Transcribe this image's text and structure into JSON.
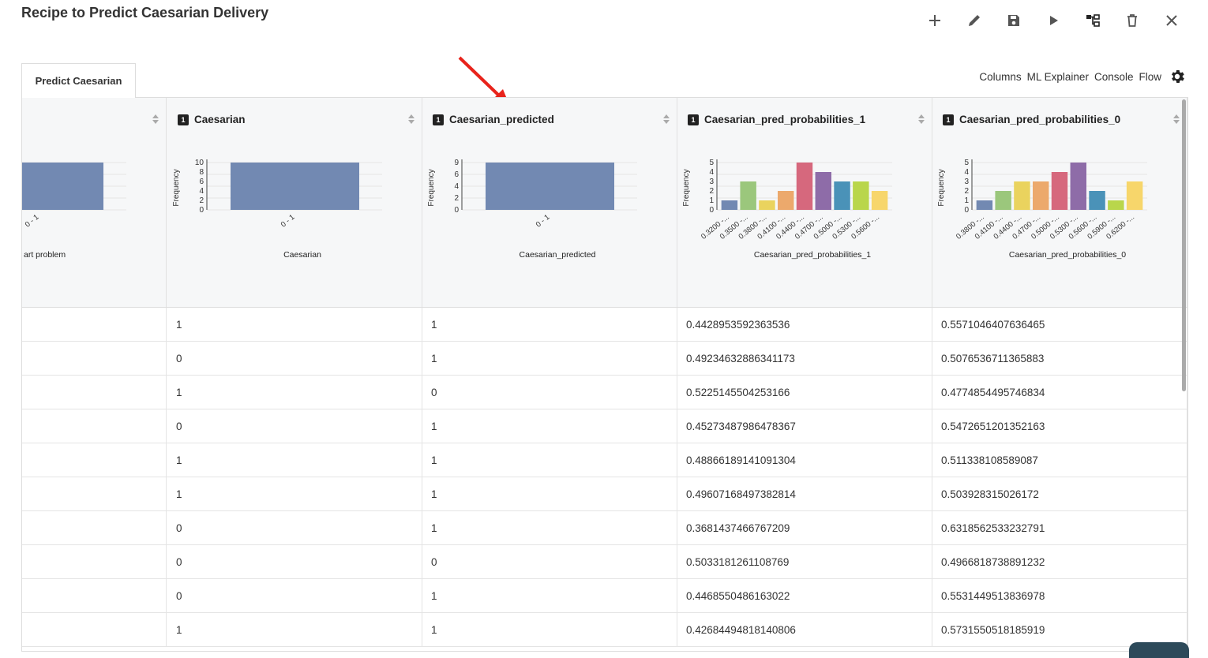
{
  "page": {
    "title": "Recipe to Predict Caesarian Delivery"
  },
  "toolbar": {
    "icons": [
      "plus-icon",
      "edit-icon",
      "save-icon",
      "run-icon",
      "flow-icon",
      "delete-icon",
      "close-icon"
    ]
  },
  "tabs": [
    {
      "label": "Predict Caesarian"
    }
  ],
  "right_nav": {
    "columns": "Columns",
    "ml_explainer": "ML Explainer",
    "console": "Console",
    "flow": "Flow"
  },
  "columns": [
    {
      "name": "",
      "axis_label": "art problem",
      "badge": "",
      "ylabel": "",
      "ticks": [],
      "bars": [
        1
      ],
      "xlabels": [
        "0 - 1"
      ]
    },
    {
      "name": "Caesarian",
      "axis_label": "Caesarian",
      "badge": "1",
      "ylabel": "Frequency",
      "ticks": [
        "10",
        "8",
        "6",
        "4",
        "2",
        "0"
      ],
      "bars": [
        1
      ],
      "xlabels": [
        "0 - 1"
      ]
    },
    {
      "name": "Caesarian_predicted",
      "axis_label": "Caesarian_predicted",
      "badge": "1",
      "ylabel": "Frequency",
      "ticks": [
        "9",
        "6",
        "4",
        "2",
        "0"
      ],
      "bars": [
        1
      ],
      "xlabels": [
        "0 - 1"
      ]
    },
    {
      "name": "Caesarian_pred_probabilities_1",
      "axis_label": "Caesarian_pred_probabilities_1",
      "badge": "1",
      "ylabel": "Frequency",
      "ticks": [
        "5",
        "4",
        "3",
        "2",
        "1",
        "0"
      ],
      "bars": [
        1,
        3,
        1,
        2,
        5,
        4,
        3,
        3,
        2
      ],
      "xlabels": [
        "0.3200 -...",
        "0.3500 -...",
        "0.3800 -...",
        "0.4100 -...",
        "0.4400 -...",
        "0.4700 -...",
        "0.5000 -...",
        "0.5300 -...",
        "0.5600 -..."
      ]
    },
    {
      "name": "Caesarian_pred_probabilities_0",
      "axis_label": "Caesarian_pred_probabilities_0",
      "badge": "1",
      "ylabel": "Frequency",
      "ticks": [
        "5",
        "4",
        "3",
        "2",
        "1",
        "0"
      ],
      "bars": [
        1,
        2,
        3,
        3,
        4,
        5,
        2,
        1,
        3
      ],
      "xlabels": [
        "0.3800 -...",
        "0.4100 -...",
        "0.4400 -...",
        "0.4700 -...",
        "0.5000 -...",
        "0.5300 -...",
        "0.5600 -...",
        "0.5900 -...",
        "0.6200 -..."
      ]
    }
  ],
  "rows": [
    [
      "",
      "1",
      "1",
      "0.4428953592363536",
      "0.5571046407636465"
    ],
    [
      "",
      "0",
      "1",
      "0.49234632886341173",
      "0.5076536711365883"
    ],
    [
      "",
      "1",
      "0",
      "0.5225145504253166",
      "0.4774854495746834"
    ],
    [
      "",
      "0",
      "1",
      "0.45273487986478367",
      "0.5472651201352163"
    ],
    [
      "",
      "1",
      "1",
      "0.48866189141091304",
      "0.511338108589087"
    ],
    [
      "",
      "1",
      "1",
      "0.49607168497382814",
      "0.503928315026172"
    ],
    [
      "",
      "0",
      "1",
      "0.3681437466767209",
      "0.6318562533232791"
    ],
    [
      "",
      "0",
      "0",
      "0.5033181261108769",
      "0.4966818738891232"
    ],
    [
      "",
      "0",
      "1",
      "0.4468550486163022",
      "0.5531449513836978"
    ],
    [
      "",
      "1",
      "1",
      "0.42684494818140806",
      "0.5731550518185919"
    ]
  ],
  "colors": {
    "single_bar": "#7289b2",
    "palette": [
      "#7289b2",
      "#9bc77c",
      "#ead35e",
      "#eca96c",
      "#d6687d",
      "#8e6ca8",
      "#4a92b8",
      "#b9d64b",
      "#f7d66b"
    ],
    "arrow": "#e8231b"
  }
}
